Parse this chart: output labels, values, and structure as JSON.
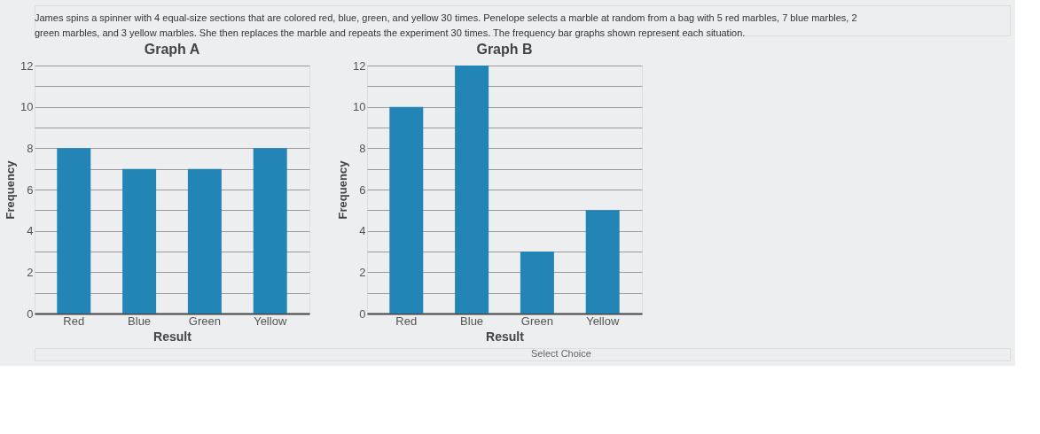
{
  "chart_data": [
    {
      "type": "bar",
      "title": "Graph A",
      "xlabel": "Result",
      "ylabel": "Frequency",
      "categories": [
        "Red",
        "Blue",
        "Green",
        "Yellow"
      ],
      "series": [
        {
          "color": "#2385b5",
          "values": [
            8,
            7,
            7,
            8
          ]
        }
      ],
      "ylim": [
        0,
        12
      ],
      "yticks": [
        0,
        {
          "value": 1,
          "label": null
        },
        2,
        {
          "value": 3,
          "label": null
        },
        4,
        {
          "value": 5,
          "label": null
        },
        6,
        {
          "value": 7,
          "label": null
        },
        8,
        {
          "value": 9,
          "label": null
        },
        10,
        {
          "value": 11,
          "label": null
        },
        12
      ],
      "grid": "y",
      "annotations": [
        "James spins a spinner with 4 equal-size sections that are colored red, blue, green, and yellow 30 times. Penelope selects a marble at random from a bag with 5 red marbles, 7 blue marbles, 2",
        "green marbles, and 3 yellow marbles. She then replaces the marble and repeats the experiment 30 times. The frequency bar graphs shown represent each situation."
      ]
    },
    {
      "type": "bar",
      "title": "Graph B",
      "xlabel": "Result",
      "ylabel": "Frequency",
      "categories": [
        "Red",
        "Blue",
        "Green",
        "Yellow"
      ],
      "series": [
        {
          "color": "#2385b5",
          "values": [
            10,
            12,
            3,
            5
          ]
        }
      ],
      "ylim": [
        0,
        12
      ],
      "yticks": [
        0,
        {
          "value": 1,
          "label": null
        },
        2,
        {
          "value": 3,
          "label": null
        },
        4,
        {
          "value": 5,
          "label": null
        },
        6,
        {
          "value": 7,
          "label": null
        },
        8,
        {
          "value": 9,
          "label": null
        },
        10,
        {
          "value": 11,
          "label": null
        },
        12
      ],
      "grid": "y",
      "annotations": [
        "Select Choice"
      ]
    }
  ]
}
